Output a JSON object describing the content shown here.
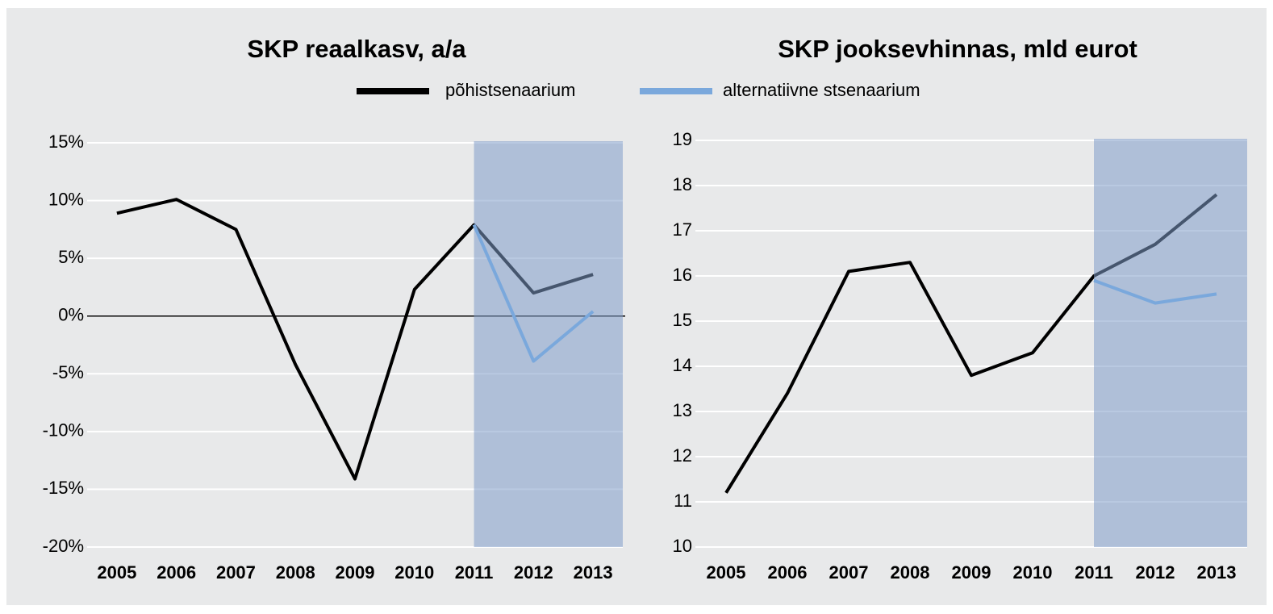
{
  "chart_data": [
    {
      "type": "line",
      "title": "SKP reaalkasv, a/a",
      "categories": [
        "2005",
        "2006",
        "2007",
        "2008",
        "2009",
        "2010",
        "2011",
        "2012",
        "2013"
      ],
      "series": [
        {
          "name": "põhistsenaarium",
          "color": "#000000",
          "values": [
            8.9,
            10.1,
            7.5,
            -4.2,
            -14.1,
            2.3,
            7.9,
            2.0,
            3.6
          ]
        },
        {
          "name": "alternatiivne stsenaarium",
          "color": "#7aa8dc",
          "values": [
            null,
            null,
            null,
            null,
            null,
            null,
            7.9,
            -3.9,
            0.4
          ]
        }
      ],
      "ylim": [
        -20,
        15
      ],
      "yticks": [
        {
          "value": -20,
          "label": "-20%"
        },
        {
          "value": -15,
          "label": "-15%"
        },
        {
          "value": -10,
          "label": "-10%"
        },
        {
          "value": -5,
          "label": "-5%"
        },
        {
          "value": 0,
          "label": "0%"
        },
        {
          "value": 5,
          "label": "5%"
        },
        {
          "value": 10,
          "label": "10%"
        },
        {
          "value": 15,
          "label": "15%"
        }
      ],
      "grid": true,
      "legend": "top"
    },
    {
      "type": "line",
      "title": "SKP jooksevhinnas, mld eurot",
      "categories": [
        "2005",
        "2006",
        "2007",
        "2008",
        "2009",
        "2010",
        "2011",
        "2012",
        "2013"
      ],
      "series": [
        {
          "name": "põhistsenaarium",
          "color": "#000000",
          "values": [
            11.2,
            13.4,
            16.1,
            16.3,
            13.8,
            14.3,
            16.0,
            16.7,
            17.8
          ]
        },
        {
          "name": "alternatiivne stsenaarium",
          "color": "#7aa8dc",
          "values": [
            null,
            null,
            null,
            null,
            null,
            null,
            15.9,
            15.4,
            15.6
          ]
        }
      ],
      "ylim": [
        10,
        19
      ],
      "yticks": [
        10,
        11,
        12,
        13,
        14,
        15,
        16,
        17,
        18,
        19
      ],
      "grid": true
    }
  ]
}
